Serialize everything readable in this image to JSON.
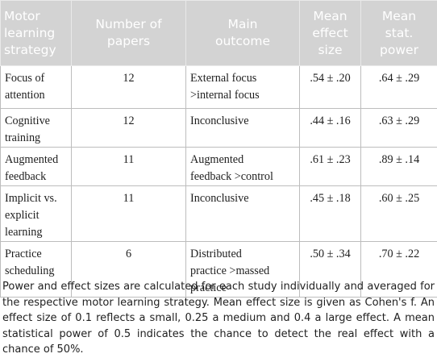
{
  "table": {
    "headers": [
      "Motor\nlearning\nstrategy",
      "Number of\npapers",
      "Main\noutcome",
      "Mean\neffect\nsize",
      "Mean\nstat.\npower"
    ],
    "rows": [
      {
        "strategy": "Focus of\nattention",
        "papers": "12",
        "outcome": "External focus\n>internal focus",
        "effect_size": ".54 ± .20",
        "power": ".64 ± .29"
      },
      {
        "strategy": "Cognitive\ntraining",
        "papers": "12",
        "outcome": "Inconclusive",
        "effect_size": ".44 ± .16",
        "power": ".63 ± .29"
      },
      {
        "strategy": "Augmented\nfeedback",
        "papers": "11",
        "outcome": "Augmented\nfeedback >control",
        "effect_size": ".61 ± .23",
        "power": ".89 ± .14"
      },
      {
        "strategy": "Implicit vs.\nexplicit learning",
        "papers": "11",
        "outcome": "Inconclusive",
        "effect_size": ".45 ± .18",
        "power": ".60 ± .25"
      },
      {
        "strategy": "Practice\nscheduling",
        "papers": "6",
        "outcome": "Distributed\npractice >massed\npractice",
        "effect_size": ".50 ± .34",
        "power": ".70 ± .22"
      }
    ]
  },
  "footnote": "Power and effect sizes are calculated for each study individually and averaged for the respective motor learning strategy. Mean effect size is given as Cohen's f. An effect size of 0.1 reflects a small, 0.25 a medium and 0.4 a large effect. A mean statistical power of 0.5 indicates the chance to detect the real effect with a chance of 50%.",
  "colors": {
    "header_bg": "#d3d3d3",
    "header_text": "#ffffff",
    "grid": "#bdbdbd"
  }
}
